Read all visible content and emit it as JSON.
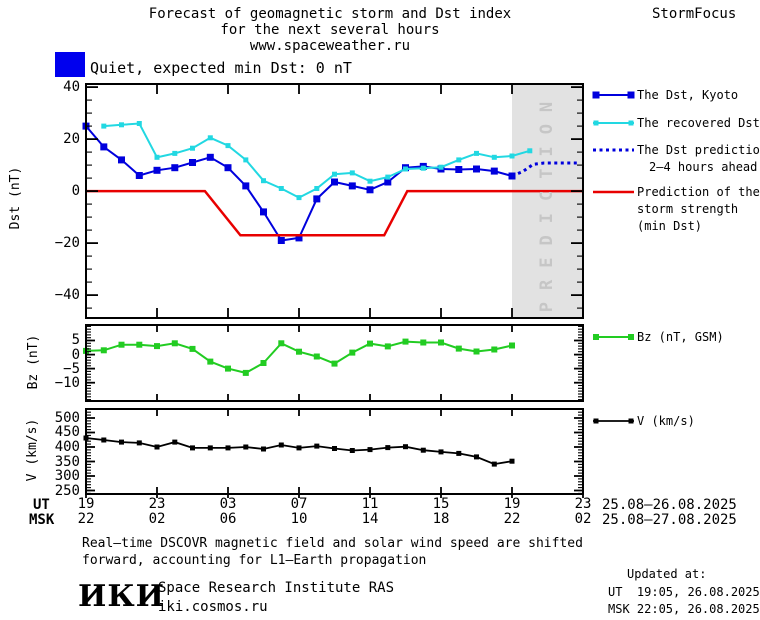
{
  "header": {
    "title_line1": "Forecast of geomagnetic storm and Dst index",
    "title_line2": "for the next several hours",
    "title_line3": "www.spaceweather.ru",
    "brand": "StormFocus"
  },
  "status": {
    "label": "Quiet, expected min Dst: 0 nT",
    "swatch_color": "#0000ee"
  },
  "prediction_label": "PREDICTION",
  "chart_data": [
    {
      "type": "line",
      "title": "Dst index observed, recovered and predicted",
      "ylabel": "Dst (nT)",
      "ylim": [
        -48.8,
        41.2
      ],
      "yticks": [
        40,
        20,
        0,
        -20,
        -40
      ],
      "xlim_hours": [
        0,
        28
      ],
      "x_tick_hours": [
        0,
        4,
        8,
        12,
        16,
        20,
        24,
        28
      ],
      "prediction_zone_hours": [
        24,
        28
      ],
      "series": [
        {
          "name": "The Dst, Kyoto",
          "color": "#0000dd",
          "lw": 2,
          "marker": 7,
          "x": [
            0,
            1,
            2,
            3,
            4,
            5,
            6,
            7,
            8,
            9,
            10,
            11,
            12,
            13,
            14,
            15,
            16,
            17,
            18,
            19,
            20,
            21,
            22,
            23,
            24
          ],
          "y": [
            25,
            17,
            12,
            6,
            8,
            9,
            11,
            13,
            9,
            2,
            -8,
            -19,
            -18,
            -3,
            3.5,
            2,
            0.5,
            3.5,
            9,
            9.5,
            8.5,
            8.3,
            8.5,
            7.7,
            5.8
          ]
        },
        {
          "name": "The recovered Dst",
          "color": "#22d8e2",
          "lw": 2,
          "marker": 5,
          "x": [
            1,
            2,
            3,
            4,
            5,
            6,
            7,
            8,
            9,
            10,
            11,
            12,
            13,
            14,
            15,
            16,
            17,
            18,
            19,
            20,
            21,
            22,
            23,
            24,
            25
          ],
          "y": [
            25,
            25.5,
            26,
            13,
            14.5,
            16.5,
            20.5,
            17.5,
            12,
            4,
            1,
            -2.5,
            1,
            6.5,
            7,
            3.8,
            5.4,
            8.5,
            8.8,
            9.2,
            12,
            14.5,
            13,
            13.5,
            15.5
          ]
        },
        {
          "name": "The Dst prediction 2–4 hours ahead",
          "color": "#0000dd",
          "lw": 3,
          "style": "dotted",
          "x": [
            24,
            24.6,
            25.2,
            25.8,
            27.8
          ],
          "y": [
            5.8,
            7.5,
            10.3,
            10.8,
            10.8
          ]
        },
        {
          "name": "Prediction of the storm strength (min Dst)",
          "color": "#e80000",
          "lw": 2.5,
          "x": [
            0,
            6.7,
            8.7,
            16.8,
            18.1,
            28
          ],
          "y": [
            0,
            0,
            -17,
            -17,
            0,
            0
          ]
        }
      ]
    },
    {
      "type": "line",
      "ylabel": "Bz (nT)",
      "ylim": [
        -16.5,
        10.5
      ],
      "yticks": [
        5,
        0,
        -5,
        -10
      ],
      "series": [
        {
          "name": "Bz (nT, GSM)",
          "color": "#22cc22",
          "lw": 2,
          "marker": 6,
          "x": [
            0,
            1,
            2,
            3,
            4,
            5,
            6,
            7,
            8,
            9,
            10,
            11,
            12,
            13,
            14,
            15,
            16,
            17,
            18,
            19,
            20,
            21,
            22,
            23,
            24
          ],
          "y": [
            1.3,
            1.5,
            3.5,
            3.5,
            3,
            4,
            2,
            -2.5,
            -5,
            -6.5,
            -3,
            4,
            1,
            -0.7,
            -3.2,
            0.7,
            3.9,
            2.9,
            4.6,
            4.3,
            4.3,
            2.1,
            1.1,
            1.8,
            3.2
          ]
        }
      ]
    },
    {
      "type": "line",
      "ylabel": "V (km/s)",
      "ylim": [
        238,
        531
      ],
      "yticks": [
        500,
        450,
        400,
        350,
        300,
        250
      ],
      "series": [
        {
          "name": "V (km/s)",
          "color": "#000000",
          "lw": 1.8,
          "marker": 5,
          "x": [
            0,
            1,
            2,
            3,
            4,
            5,
            6,
            7,
            8,
            9,
            10,
            11,
            12,
            13,
            14,
            15,
            16,
            17,
            18,
            19,
            20,
            21,
            22,
            23,
            24
          ],
          "y": [
            431,
            424,
            417,
            414,
            400,
            417,
            397,
            397,
            397,
            400,
            393,
            407,
            397,
            403,
            395,
            388,
            391,
            398,
            401,
            389,
            383,
            378,
            366,
            341,
            351
          ]
        }
      ]
    }
  ],
  "legend": {
    "dst": "The Dst, Kyoto",
    "recovered": "The recovered Dst",
    "prediction_l1": "The Dst prediction",
    "prediction_l2": "2–4 hours ahead",
    "strength_l1": "Prediction of the",
    "strength_l2": "storm strength",
    "strength_l3": "(min Dst)",
    "bz": "Bz (nT, GSM)",
    "v": "V (km/s)"
  },
  "xaxis": {
    "ut_label": "UT",
    "msk_label": "MSK",
    "ut_ticks": [
      "19",
      "23",
      "03",
      "07",
      "11",
      "15",
      "19",
      "23"
    ],
    "msk_ticks": [
      "22",
      "02",
      "06",
      "10",
      "14",
      "18",
      "22",
      "02"
    ],
    "ut_range": "25.08–26.08.2025",
    "msk_range": "25.08–27.08.2025"
  },
  "footer": {
    "note_line1": "Real–time DSCOVR magnetic field and solar wind speed are shifted",
    "note_line2": "forward, accounting for L1–Earth propagation",
    "logo": "ИКИ",
    "institute": "Space Research Institute RAS",
    "site": "iki.cosmos.ru",
    "updated_title": "Updated at:",
    "updated_ut": "UT  19:05, 26.08.2025",
    "updated_msk": "MSK 22:05, 26.08.2025"
  },
  "colors": {
    "dst_line": "#0000dd",
    "recovered_line": "#22d8e2",
    "storm_strength_line": "#e80000",
    "bz_line": "#22cc22",
    "v_line": "#000000",
    "prediction_zone": "#e2e2e2",
    "prediction_text": "#c6c6c6",
    "quiet_swatch": "#0000ee"
  }
}
